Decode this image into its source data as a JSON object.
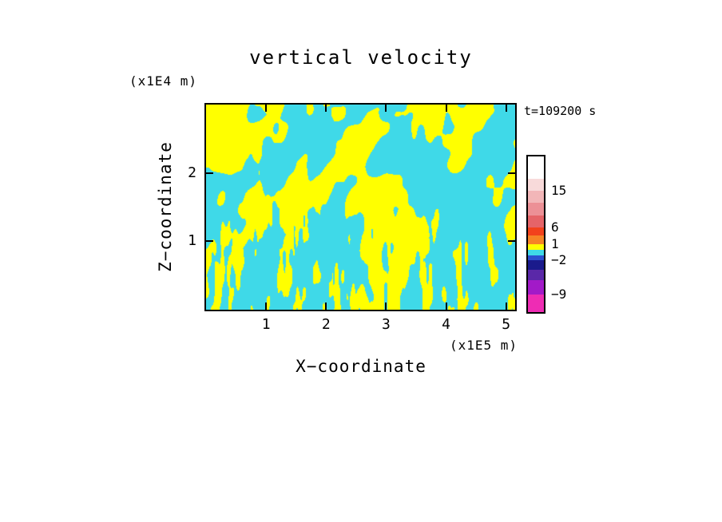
{
  "page": {
    "background": "#FFFFFF"
  },
  "chart_data": {
    "type": "heatmap",
    "title": "vertical velocity",
    "timestamp_label": "t=109200 s",
    "xlabel": "X−coordinate",
    "ylabel": "Z−coordinate",
    "x_unit_label": "(x1E5 m)",
    "y_unit_label": "(x1E4 m)",
    "x_ticks": [
      "1",
      "2",
      "3",
      "4",
      "5"
    ],
    "y_ticks": [
      "1",
      "2"
    ],
    "x_tick_values": [
      1,
      2,
      3,
      4,
      5
    ],
    "y_tick_values": [
      1,
      2
    ],
    "xlim": [
      0,
      5.15
    ],
    "ylim": [
      0,
      3.0
    ],
    "grid": false,
    "legend_position": "right-colorbar",
    "field": {
      "description": "Turbulent vertical-velocity cross-section rendered as a two-tone filled contour field: cyan patches are values in the −2..1 band, yellow patches are values in the 1..6 band; streaky elongated cells, finer vertical striping toward the bottom of the domain.",
      "negative_color": "#3FD9E8",
      "positive_color": "#FFFF00",
      "threshold": 0.52,
      "seed": 7.3
    },
    "colorbar": {
      "level_labels_top_to_bottom": [
        "15",
        "6",
        "1",
        "−2",
        "−9"
      ],
      "segments": [
        {
          "color": "#FFFFFF",
          "h": 28
        },
        {
          "color": "#F8DADA",
          "h": 15
        },
        {
          "color": "#F2B6B8",
          "h": 15
        },
        {
          "color": "#EC9096",
          "h": 16
        },
        {
          "color": "#E56468",
          "h": 15
        },
        {
          "color": "#F2421C",
          "h": 10
        },
        {
          "color": "#F68426",
          "h": 11
        },
        {
          "color": "#FFFF00",
          "h": 7
        },
        {
          "color": "#3FD9E8",
          "h": 7
        },
        {
          "color": "#2B50D0",
          "h": 6
        },
        {
          "color": "#1A1A8C",
          "h": 12
        },
        {
          "color": "#5A28A8",
          "h": 13
        },
        {
          "color": "#A21AC8",
          "h": 18
        },
        {
          "color": "#EE2CB4",
          "h": 22
        }
      ],
      "labels": [
        {
          "text": "15",
          "pos": 0.2205
        },
        {
          "text": "6",
          "pos": 0.4564
        },
        {
          "text": "1",
          "pos": 0.5641
        },
        {
          "text": "−2",
          "pos": 0.6667
        },
        {
          "text": "−9",
          "pos": 0.8872
        }
      ]
    }
  }
}
